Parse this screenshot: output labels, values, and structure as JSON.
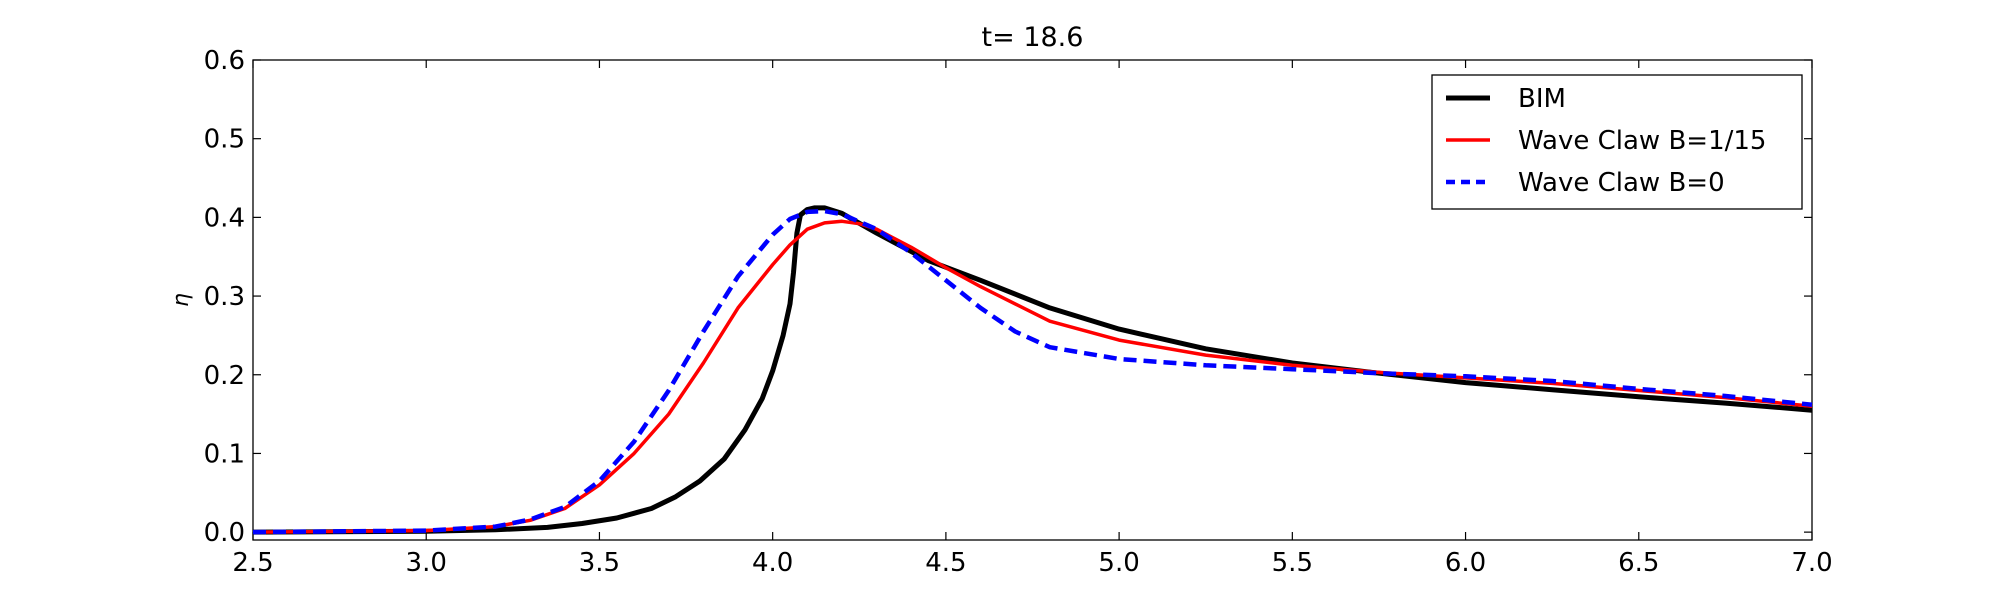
{
  "chart_data": {
    "type": "line",
    "title": "t= 18.6",
    "xlabel": "",
    "ylabel": "η",
    "xlim": [
      2.5,
      7.0
    ],
    "ylim": [
      -0.01,
      0.6
    ],
    "xticks": [
      "2.5",
      "3.0",
      "3.5",
      "4.0",
      "4.5",
      "5.0",
      "5.5",
      "6.0",
      "6.5",
      "7.0"
    ],
    "yticks": [
      "0.0",
      "0.1",
      "0.2",
      "0.3",
      "0.4",
      "0.5",
      "0.6"
    ],
    "grid": false,
    "legend_position": "top-right",
    "series": [
      {
        "name": "BIM",
        "color": "#000000",
        "style": "solid",
        "x": [
          2.5,
          3.0,
          3.2,
          3.35,
          3.45,
          3.55,
          3.65,
          3.72,
          3.79,
          3.86,
          3.92,
          3.97,
          4.0,
          4.03,
          4.05,
          4.06,
          4.07,
          4.08,
          4.1,
          4.12,
          4.15,
          4.2,
          4.3,
          4.45,
          4.6,
          4.8,
          5.0,
          5.25,
          5.5,
          5.75,
          6.0,
          6.25,
          6.5,
          6.75,
          7.0
        ],
        "y": [
          0.0,
          0.001,
          0.003,
          0.006,
          0.011,
          0.018,
          0.03,
          0.045,
          0.065,
          0.093,
          0.13,
          0.17,
          0.205,
          0.25,
          0.29,
          0.33,
          0.38,
          0.403,
          0.41,
          0.412,
          0.412,
          0.405,
          0.38,
          0.345,
          0.32,
          0.285,
          0.258,
          0.233,
          0.215,
          0.202,
          0.19,
          0.181,
          0.172,
          0.164,
          0.155
        ]
      },
      {
        "name": "Wave Claw B=1/15",
        "color": "#ff0000",
        "style": "solid",
        "x": [
          2.5,
          3.0,
          3.2,
          3.3,
          3.4,
          3.5,
          3.6,
          3.7,
          3.8,
          3.9,
          4.0,
          4.05,
          4.1,
          4.15,
          4.2,
          4.25,
          4.3,
          4.4,
          4.5,
          4.6,
          4.7,
          4.8,
          5.0,
          5.25,
          5.5,
          5.75,
          6.0,
          6.25,
          6.5,
          6.75,
          7.0
        ],
        "y": [
          0.0,
          0.002,
          0.007,
          0.015,
          0.03,
          0.06,
          0.1,
          0.15,
          0.215,
          0.285,
          0.34,
          0.365,
          0.385,
          0.393,
          0.395,
          0.392,
          0.385,
          0.362,
          0.336,
          0.312,
          0.29,
          0.268,
          0.244,
          0.225,
          0.212,
          0.203,
          0.196,
          0.189,
          0.18,
          0.171,
          0.16
        ]
      },
      {
        "name": "Wave Claw B=0",
        "color": "#0000ff",
        "style": "dashed",
        "x": [
          2.5,
          3.0,
          3.2,
          3.3,
          3.4,
          3.5,
          3.6,
          3.7,
          3.8,
          3.9,
          4.0,
          4.05,
          4.1,
          4.15,
          4.2,
          4.3,
          4.4,
          4.5,
          4.6,
          4.7,
          4.8,
          5.0,
          5.25,
          5.5,
          5.75,
          6.0,
          6.25,
          6.5,
          6.75,
          7.0
        ],
        "y": [
          0.0,
          0.002,
          0.007,
          0.016,
          0.032,
          0.065,
          0.115,
          0.18,
          0.255,
          0.325,
          0.378,
          0.398,
          0.407,
          0.408,
          0.404,
          0.385,
          0.355,
          0.32,
          0.285,
          0.255,
          0.235,
          0.22,
          0.212,
          0.207,
          0.202,
          0.198,
          0.192,
          0.182,
          0.173,
          0.162
        ]
      }
    ]
  }
}
